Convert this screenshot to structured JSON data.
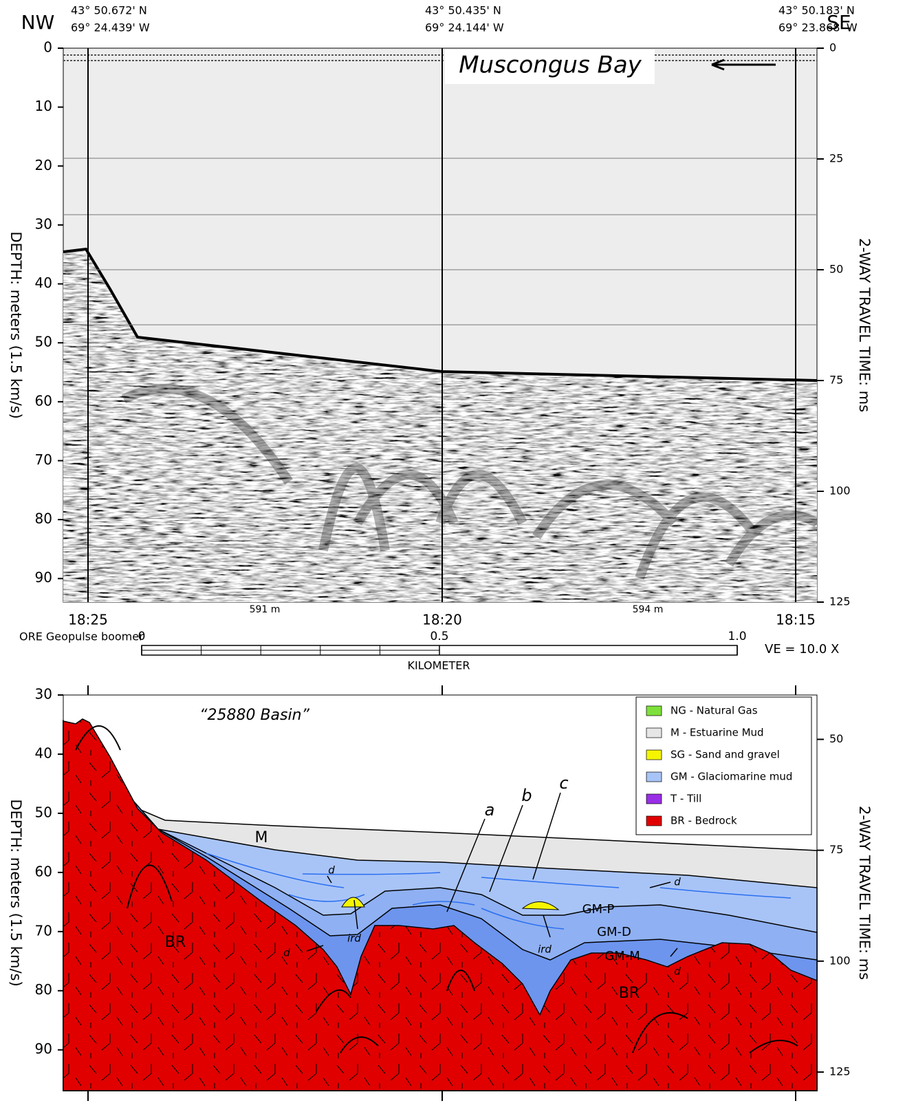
{
  "header": {
    "left_dir": "NW",
    "right_dir": "SE",
    "positions": [
      {
        "lat": "43° 50.672' N",
        "lon": "69° 24.439' W"
      },
      {
        "lat": "43° 50.435' N",
        "lon": "69° 24.144' W"
      },
      {
        "lat": "43° 50.183' N",
        "lon": "69° 23.868' W"
      }
    ]
  },
  "profile": {
    "title": "Muscongus Bay",
    "y_label": "DEPTH: meters (1.5 km/s)",
    "y2_label": "2-WAY TRAVEL TIME: ms",
    "ylim": [
      0,
      94
    ],
    "yticks": [
      0,
      10,
      20,
      30,
      40,
      50,
      60,
      70,
      80,
      90
    ],
    "y2lim": [
      0,
      125
    ],
    "y2ticks": [
      0,
      25,
      50,
      75,
      100,
      125
    ],
    "times": [
      "18:25",
      "18:20",
      "18:15"
    ],
    "distances": [
      "591 m",
      "594 m"
    ]
  },
  "scale": {
    "source": "ORE Geopulse boomer",
    "unit": "KILOMETER",
    "xlim": [
      0,
      1
    ],
    "ticks": [
      0,
      0.5,
      {
        "value": 1,
        "label": "1.0"
      }
    ],
    "ve": "VE = 10.0 X"
  },
  "interpretation": {
    "title": "“25880 Basin”",
    "y_label": "DEPTH: meters (1.5 km/s)",
    "y2_label": "2-WAY TRAVEL TIME: ms",
    "ylim": [
      30,
      96.9
    ],
    "yticks": [
      30,
      40,
      50,
      60,
      70,
      80,
      90
    ],
    "y2lim": [
      40,
      129.2
    ],
    "y2ticks": [
      50,
      75,
      100,
      125
    ],
    "labels": [
      "M",
      "BR",
      "BR",
      "GM-P",
      "GM-D",
      "GM-M",
      "a",
      "b",
      "c",
      "d",
      "d",
      "d",
      "d",
      "ird",
      "ird"
    ],
    "legend": [
      {
        "label": "NG - Natural Gas",
        "color": "#7ee03a"
      },
      {
        "label": "M -   Estuarine Mud",
        "color": "#e6e6e6"
      },
      {
        "label": "SG - Sand and gravel",
        "color": "#f5f500"
      },
      {
        "label": "GM - Glaciomarine mud",
        "color": "#a8c4f7"
      },
      {
        "label": "T -  Till",
        "color": "#9a2ee6"
      },
      {
        "label": "BR - Bedrock",
        "color": "#e00000"
      }
    ]
  }
}
